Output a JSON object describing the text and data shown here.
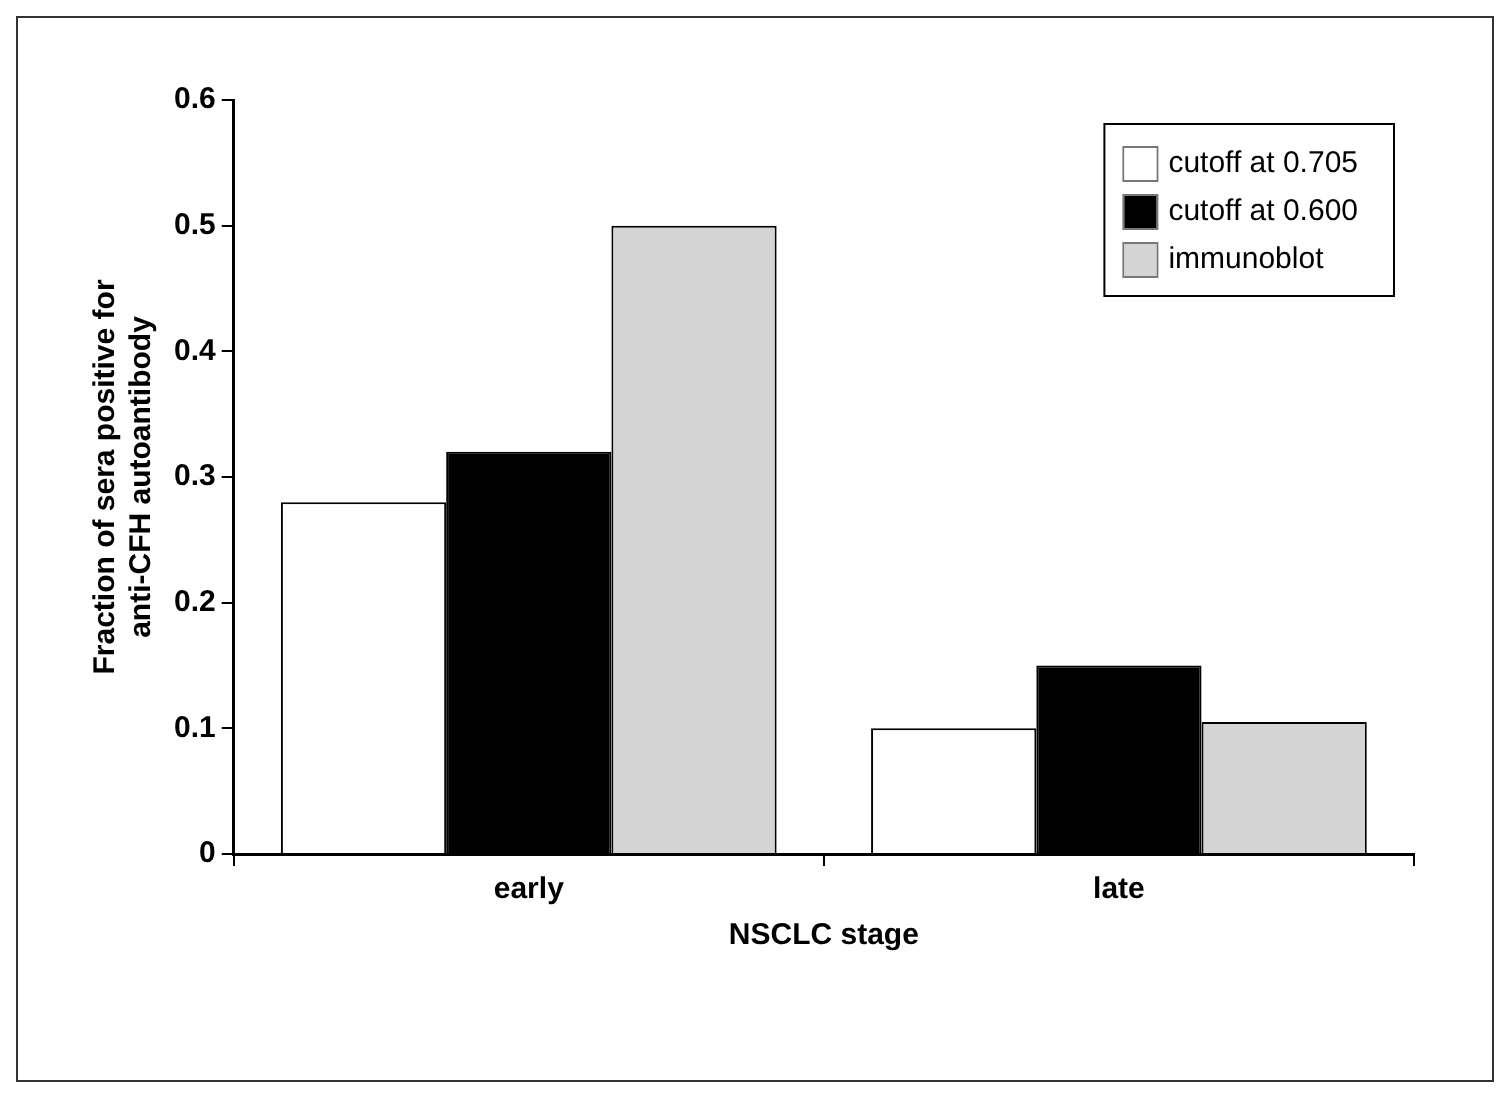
{
  "chart_data": {
    "type": "bar",
    "xlabel": "NSCLC stage",
    "ylabel": "Fraction of sera positive for\nanti-CFH autoantibody",
    "categories": [
      "early",
      "late"
    ],
    "series": [
      {
        "name": "cutoff at 0.705",
        "color": "#ffffff",
        "values": [
          0.28,
          0.1
        ]
      },
      {
        "name": "cutoff at 0.600",
        "color": "#000000",
        "values": [
          0.32,
          0.15
        ]
      },
      {
        "name": "immunoblot",
        "color": "#d4d4d4",
        "values": [
          0.5,
          0.105
        ]
      }
    ],
    "ylim": [
      0,
      0.6
    ],
    "yticks": [
      0,
      0.1,
      0.2,
      0.3,
      0.4,
      0.5,
      0.6
    ],
    "grid": false,
    "legend": "top right"
  }
}
